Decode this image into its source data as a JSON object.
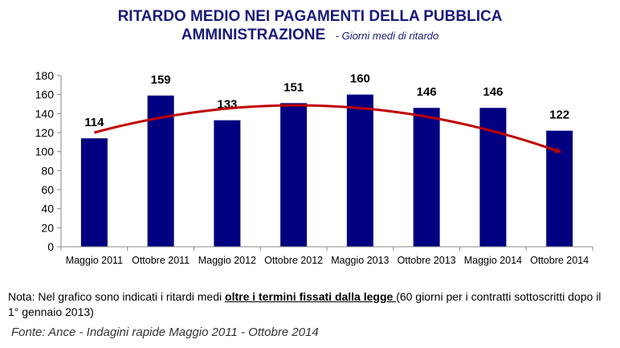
{
  "title_line1": "RITARDO MEDIO NEI PAGAMENTI DELLA PUBBLICA",
  "title_line2": "AMMINISTRAZIONE",
  "subtitle": "- Giorni medi di ritardo",
  "chart_data": {
    "type": "bar",
    "categories": [
      "Maggio 2011",
      "Ottobre 2011",
      "Maggio 2012",
      "Ottobre 2012",
      "Maggio 2013",
      "Ottobre 2013",
      "Maggio 2014",
      "Ottobre 2014"
    ],
    "values": [
      114,
      159,
      133,
      151,
      160,
      146,
      146,
      122
    ],
    "data_labels": [
      "114",
      "159",
      "133",
      "151",
      "160",
      "146",
      "146",
      "122"
    ],
    "ylim": [
      0,
      180
    ],
    "yticks": [
      "0",
      "20",
      "40",
      "60",
      "80",
      "100",
      "120",
      "140",
      "160",
      "180"
    ],
    "grid": false,
    "trend_arrow": true,
    "colors": {
      "bar": "#000080",
      "trend": "#c00000"
    }
  },
  "note": {
    "prefix": "Nota: Nel grafico sono indicati i ritardi medi ",
    "emphasis": "oltre i termini fissati dalla legge ",
    "suffix": "(60 giorni per i contratti sottoscritti dopo il 1° gennaio 2013)"
  },
  "source": "Fonte: Ance - Indagini rapide Maggio 2011 - Ottobre 2014"
}
